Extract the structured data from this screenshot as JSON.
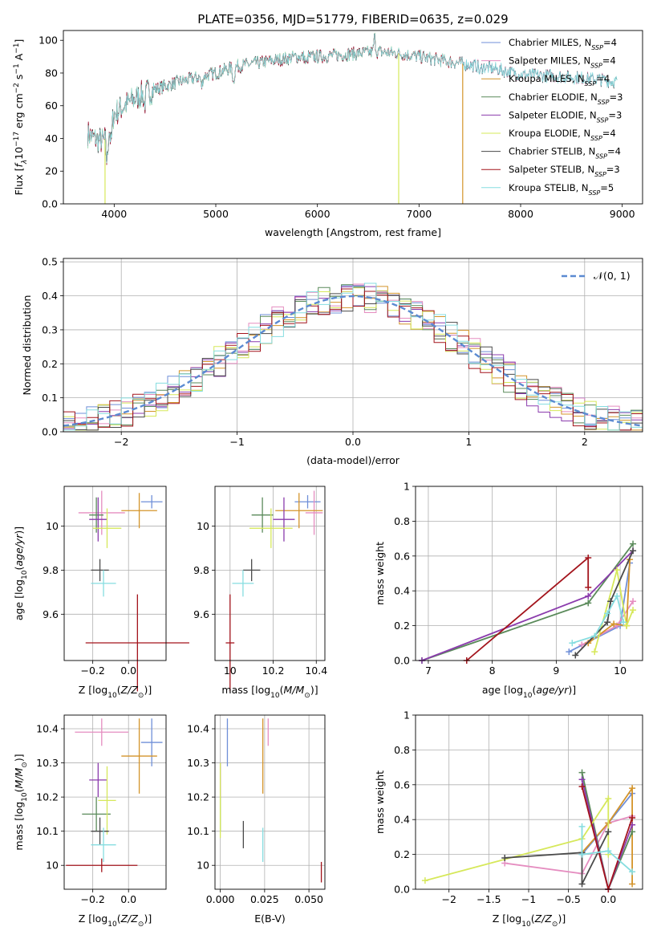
{
  "figure": {
    "title": "PLATE=0356, MJD=51779, FIBERID=0635, z=0.029",
    "legend": [
      {
        "label": "Chabrier MILES, N",
        "sub": "SSP",
        "suffix": "=4",
        "color": "#6f8fd8"
      },
      {
        "label": "Salpeter MILES, N",
        "sub": "SSP",
        "suffix": "=4",
        "color": "#e58dc0"
      },
      {
        "label": "Kroupa MILES, N",
        "sub": "SSP",
        "suffix": "=4",
        "color": "#d4942a"
      },
      {
        "label": "Chabrier ELODIE, N",
        "sub": "SSP",
        "suffix": "=3",
        "color": "#5a8a5a"
      },
      {
        "label": "Salpeter ELODIE, N",
        "sub": "SSP",
        "suffix": "=3",
        "color": "#8b3cad"
      },
      {
        "label": "Kroupa ELODIE, N",
        "sub": "SSP",
        "suffix": "=4",
        "color": "#d6e85a"
      },
      {
        "label": "Chabrier STELIB, N",
        "sub": "SSP",
        "suffix": "=4",
        "color": "#4a4a4a"
      },
      {
        "label": "Salpeter STELIB, N",
        "sub": "SSP",
        "suffix": "=3",
        "color": "#a3141c"
      },
      {
        "label": "Kroupa STELIB, N",
        "sub": "SSP",
        "suffix": "=5",
        "color": "#86dde0"
      }
    ]
  },
  "chart_data": [
    {
      "id": "spectrum",
      "type": "line",
      "xlabel": "wavelength [Angstrom, rest frame]",
      "ylabel": "Flux [f_λ 10^-17 erg cm^-2 s^-1 A^-1]",
      "xlim": [
        3500,
        9200
      ],
      "ylim": [
        0,
        106
      ],
      "xticks": [
        4000,
        5000,
        6000,
        7000,
        8000,
        9000
      ],
      "yticks": [
        0,
        20,
        40,
        60,
        80,
        100
      ],
      "continuum": {
        "x": [
          3740,
          3800,
          3900,
          4000,
          4100,
          4200,
          4300,
          4400,
          4600,
          4800,
          5000,
          5200,
          5400,
          5600,
          5800,
          6000,
          6200,
          6400,
          6600,
          6800,
          7000,
          7200,
          7400,
          7600,
          7800,
          8000,
          8400,
          8800,
          9000
        ],
        "y": [
          43,
          40,
          38,
          55,
          60,
          64,
          68,
          70,
          74,
          77,
          80,
          84,
          86,
          88,
          90,
          90,
          91,
          92,
          93,
          92,
          90,
          88,
          86,
          84,
          82,
          79,
          78,
          76,
          74
        ]
      },
      "features": [
        {
          "x": 3930,
          "depth": 20
        },
        {
          "x": 3970,
          "depth": 15
        },
        {
          "x": 4300,
          "depth": 8
        },
        {
          "x": 4861,
          "depth": 7
        },
        {
          "x": 5175,
          "depth": 10
        },
        {
          "x": 5890,
          "depth": 6
        },
        {
          "x": 6563,
          "depth": -10
        },
        {
          "x": 7600,
          "depth": 5
        }
      ],
      "glitches": [
        {
          "x": 3910,
          "series": "Kroupa ELODIE"
        },
        {
          "x": 6800,
          "series": "Kroupa ELODIE"
        },
        {
          "x": 7430,
          "series": "Kroupa MILES"
        }
      ],
      "series_end": [
        {
          "name": "Chabrier MILES",
          "xmax": 8900
        },
        {
          "name": "Salpeter MILES",
          "xmax": 8900
        },
        {
          "name": "Kroupa MILES",
          "xmax": 7430
        },
        {
          "name": "Chabrier ELODIE",
          "xmax": 6800
        },
        {
          "name": "Salpeter ELODIE",
          "xmax": 6800
        },
        {
          "name": "Kroupa ELODIE",
          "xmax": 6800
        },
        {
          "name": "Chabrier STELIB",
          "xmax": 8950
        },
        {
          "name": "Salpeter STELIB",
          "xmax": 7430
        },
        {
          "name": "Kroupa STELIB",
          "xmax": 8950
        }
      ]
    },
    {
      "id": "residuals",
      "type": "histogram",
      "xlabel": "(data-model)/error",
      "ylabel": "Normed distribution",
      "xlim": [
        -2.5,
        2.5
      ],
      "ylim": [
        0,
        0.51
      ],
      "xticks": [
        -2,
        -1,
        0,
        1,
        2
      ],
      "yticks": [
        0.0,
        0.1,
        0.2,
        0.3,
        0.4,
        0.5
      ],
      "bin_width": 0.1,
      "legend": "𝒩(0, 1)",
      "curve": "normal(0,1)"
    },
    {
      "id": "age_vs_Z",
      "type": "errorbar",
      "xlabel": "Z [log10(Z/Z⊙)]",
      "ylabel": "age  [log10(age/yr)]",
      "xlim": [
        -0.36,
        0.21
      ],
      "ylim": [
        9.39,
        10.18
      ],
      "xticks": [
        -0.2,
        0.0
      ],
      "yticks": [
        9.6,
        9.8,
        10.0
      ],
      "points": [
        {
          "series": "Chabrier MILES",
          "x": 0.13,
          "y": 10.11,
          "xe": 0.06,
          "ye": 0.03
        },
        {
          "series": "Salpeter MILES",
          "x": -0.15,
          "y": 10.06,
          "xe": 0.13,
          "ye": 0.1
        },
        {
          "series": "Kroupa MILES",
          "x": 0.06,
          "y": 10.07,
          "xe": 0.1,
          "ye": 0.08
        },
        {
          "series": "Chabrier ELODIE",
          "x": -0.18,
          "y": 10.05,
          "xe": 0.04,
          "ye": 0.08
        },
        {
          "series": "Salpeter ELODIE",
          "x": -0.17,
          "y": 10.03,
          "xe": 0.05,
          "ye": 0.1
        },
        {
          "series": "Kroupa ELODIE",
          "x": -0.12,
          "y": 9.99,
          "xe": 0.08,
          "ye": 0.09
        },
        {
          "series": "Chabrier STELIB",
          "x": -0.16,
          "y": 9.8,
          "xe": 0.05,
          "ye": 0.05
        },
        {
          "series": "Salpeter STELIB",
          "x": 0.05,
          "y": 9.47,
          "xe": 0.29,
          "ye": 0.22
        },
        {
          "series": "Kroupa STELIB",
          "x": -0.14,
          "y": 9.74,
          "xe": 0.07,
          "ye": 0.06
        }
      ]
    },
    {
      "id": "age_vs_mass",
      "type": "errorbar",
      "xlabel": "mass [log10(M/M⊙)]",
      "ylabel": "",
      "xlim": [
        9.93,
        10.44
      ],
      "ylim": [
        9.39,
        10.18
      ],
      "xticks": [
        10.0,
        10.2,
        10.4
      ],
      "yticks": [
        9.6,
        9.8,
        10.0
      ],
      "points": [
        {
          "series": "Chabrier MILES",
          "x": 10.36,
          "y": 10.11,
          "xe": 0.06,
          "ye": 0.03
        },
        {
          "series": "Salpeter MILES",
          "x": 10.39,
          "y": 10.06,
          "xe": 0.04,
          "ye": 0.1
        },
        {
          "series": "Kroupa MILES",
          "x": 10.32,
          "y": 10.07,
          "xe": 0.11,
          "ye": 0.08
        },
        {
          "series": "Chabrier ELODIE",
          "x": 10.15,
          "y": 10.05,
          "xe": 0.05,
          "ye": 0.08
        },
        {
          "series": "Salpeter ELODIE",
          "x": 10.25,
          "y": 10.03,
          "xe": 0.05,
          "ye": 0.1
        },
        {
          "series": "Kroupa ELODIE",
          "x": 10.19,
          "y": 9.99,
          "xe": 0.1,
          "ye": 0.09
        },
        {
          "series": "Chabrier STELIB",
          "x": 10.1,
          "y": 9.8,
          "xe": 0.04,
          "ye": 0.05
        },
        {
          "series": "Salpeter STELIB",
          "x": 10.0,
          "y": 9.47,
          "xe": 0.02,
          "ye": 0.22
        },
        {
          "series": "Kroupa STELIB",
          "x": 10.06,
          "y": 9.74,
          "xe": 0.05,
          "ye": 0.06
        }
      ]
    },
    {
      "id": "weight_vs_age",
      "type": "line",
      "xlabel": "age  [log10(age/yr)]",
      "ylabel": "mass weight",
      "xlim": [
        6.8,
        10.35
      ],
      "ylim": [
        0,
        1.0
      ],
      "xticks": [
        7,
        8,
        9,
        10
      ],
      "yticks": [
        0.0,
        0.2,
        0.4,
        0.6,
        0.8,
        1.0
      ],
      "series": [
        {
          "name": "Chabrier MILES",
          "x": [
            9.2,
            10.0,
            10.15
          ],
          "y": [
            0.05,
            0.2,
            0.56
          ]
        },
        {
          "name": "Salpeter MILES",
          "x": [
            9.4,
            9.95,
            10.2
          ],
          "y": [
            0.09,
            0.2,
            0.34
          ]
        },
        {
          "name": "Kroupa MILES",
          "x": [
            9.5,
            9.9,
            10.1,
            10.15
          ],
          "y": [
            0.1,
            0.21,
            0.2,
            0.58
          ]
        },
        {
          "name": "Chabrier ELODIE",
          "x": [
            6.9,
            9.5,
            10.2
          ],
          "y": [
            0.0,
            0.33,
            0.67
          ]
        },
        {
          "name": "Salpeter ELODIE",
          "x": [
            6.9,
            9.5,
            10.2
          ],
          "y": [
            0.0,
            0.37,
            0.63
          ]
        },
        {
          "name": "Kroupa ELODIE",
          "x": [
            9.6,
            9.95,
            10.1,
            10.2
          ],
          "y": [
            0.05,
            0.52,
            0.2,
            0.29
          ]
        },
        {
          "name": "Chabrier STELIB",
          "x": [
            9.3,
            9.8,
            9.85,
            10.2
          ],
          "y": [
            0.03,
            0.22,
            0.34,
            0.63
          ]
        },
        {
          "name": "Salpeter STELIB",
          "x": [
            7.6,
            9.5,
            9.5
          ],
          "y": [
            0.0,
            0.59,
            0.42
          ]
        },
        {
          "name": "Kroupa STELIB",
          "x": [
            9.25,
            9.6,
            9.8,
            9.95,
            10.05
          ],
          "y": [
            0.1,
            0.14,
            0.27,
            0.37,
            0.22
          ]
        }
      ]
    },
    {
      "id": "mass_vs_Z",
      "type": "errorbar",
      "xlabel": "Z [log10(Z/Z⊙)]",
      "ylabel": "mass [log10(M/M⊙)]",
      "xlim": [
        -0.36,
        0.21
      ],
      "ylim": [
        9.93,
        10.44
      ],
      "xticks": [
        -0.2,
        0.0
      ],
      "yticks": [
        10.0,
        10.1,
        10.2,
        10.3,
        10.4
      ],
      "points": [
        {
          "series": "Chabrier MILES",
          "x": 0.13,
          "y": 10.36,
          "xe": 0.06,
          "ye": 0.07
        },
        {
          "series": "Salpeter MILES",
          "x": -0.15,
          "y": 10.39,
          "xe": 0.15,
          "ye": 0.04
        },
        {
          "series": "Kroupa MILES",
          "x": 0.06,
          "y": 10.32,
          "xe": 0.1,
          "ye": 0.11
        },
        {
          "series": "Chabrier ELODIE",
          "x": -0.18,
          "y": 10.15,
          "xe": 0.08,
          "ye": 0.05
        },
        {
          "series": "Salpeter ELODIE",
          "x": -0.17,
          "y": 10.25,
          "xe": 0.05,
          "ye": 0.05
        },
        {
          "series": "Kroupa ELODIE",
          "x": -0.12,
          "y": 10.19,
          "xe": 0.05,
          "ye": 0.1
        },
        {
          "series": "Chabrier STELIB",
          "x": -0.16,
          "y": 10.1,
          "xe": 0.05,
          "ye": 0.04
        },
        {
          "series": "Salpeter STELIB",
          "x": -0.15,
          "y": 10.0,
          "xe": 0.2,
          "ye": 0.02
        },
        {
          "series": "Kroupa STELIB",
          "x": -0.14,
          "y": 10.06,
          "xe": 0.07,
          "ye": 0.05
        }
      ]
    },
    {
      "id": "mass_vs_ebv",
      "type": "errorbar",
      "xlabel": "E(B-V)",
      "ylabel": "",
      "xlim": [
        -0.003,
        0.059
      ],
      "ylim": [
        9.93,
        10.44
      ],
      "xticks": [
        0.0,
        0.025,
        0.05
      ],
      "xticklabels": [
        "0.000",
        "0.025",
        "0.050"
      ],
      "yticks": [
        10.0,
        10.1,
        10.2,
        10.3,
        10.4
      ],
      "points": [
        {
          "series": "Chabrier MILES",
          "x": 0.004,
          "y": 10.36,
          "xe": 0,
          "ye": 0.07
        },
        {
          "series": "Salpeter MILES",
          "x": 0.027,
          "y": 10.39,
          "xe": 0,
          "ye": 0.04
        },
        {
          "series": "Kroupa MILES",
          "x": 0.024,
          "y": 10.32,
          "xe": 0,
          "ye": 0.11
        },
        {
          "series": "Chabrier ELODIE",
          "x": 0.0,
          "y": 10.15,
          "xe": 0,
          "ye": 0.05
        },
        {
          "series": "Salpeter ELODIE",
          "x": 0.0,
          "y": 10.25,
          "xe": 0,
          "ye": 0.05
        },
        {
          "series": "Kroupa ELODIE",
          "x": 0.0,
          "y": 10.19,
          "xe": 0,
          "ye": 0.11
        },
        {
          "series": "Chabrier STELIB",
          "x": 0.013,
          "y": 10.09,
          "xe": 0,
          "ye": 0.04
        },
        {
          "series": "Salpeter STELIB",
          "x": 0.057,
          "y": 9.98,
          "xe": 0,
          "ye": 0.03
        },
        {
          "series": "Kroupa STELIB",
          "x": 0.024,
          "y": 10.06,
          "xe": 0,
          "ye": 0.05
        }
      ]
    },
    {
      "id": "weight_vs_Z",
      "type": "line",
      "xlabel": "Z [log10(Z/Z⊙)]",
      "ylabel": "mass weight",
      "xlim": [
        -2.42,
        0.43
      ],
      "ylim": [
        0,
        1.0
      ],
      "xticks": [
        -2.0,
        -1.5,
        -1.0,
        -0.5,
        0.0
      ],
      "yticks": [
        0.0,
        0.2,
        0.4,
        0.6,
        0.8,
        1.0
      ],
      "series": [
        {
          "name": "Chabrier MILES",
          "x": [
            -0.33,
            0.0,
            0.3
          ],
          "y": [
            0.2,
            0.38,
            0.55
          ]
        },
        {
          "name": "Salpeter MILES",
          "x": [
            -1.3,
            -0.33,
            0.0,
            0.3
          ],
          "y": [
            0.15,
            0.09,
            0.38,
            0.42
          ]
        },
        {
          "name": "Kroupa MILES",
          "x": [
            -0.33,
            0.0,
            0.3,
            0.3
          ],
          "y": [
            0.21,
            0.38,
            0.58,
            0.03
          ]
        },
        {
          "name": "Chabrier ELODIE",
          "x": [
            -0.33,
            0.0,
            0.3
          ],
          "y": [
            0.67,
            0.0,
            0.33
          ]
        },
        {
          "name": "Salpeter ELODIE",
          "x": [
            -0.33,
            0.0,
            0.3
          ],
          "y": [
            0.63,
            0.0,
            0.37
          ]
        },
        {
          "name": "Kroupa ELODIE",
          "x": [
            -2.3,
            -0.33,
            0.0,
            0.0
          ],
          "y": [
            0.05,
            0.29,
            0.52,
            0.2
          ]
        },
        {
          "name": "Chabrier STELIB",
          "x": [
            -1.3,
            -0.33,
            -0.33,
            0.0
          ],
          "y": [
            0.18,
            0.21,
            0.03,
            0.33
          ]
        },
        {
          "name": "Salpeter STELIB",
          "x": [
            -0.33,
            0.0,
            0.3
          ],
          "y": [
            0.59,
            0.0,
            0.41
          ]
        },
        {
          "name": "Kroupa STELIB",
          "x": [
            -0.33,
            -0.33,
            0.0,
            0.3
          ],
          "y": [
            0.36,
            0.2,
            0.22,
            0.1
          ]
        }
      ]
    }
  ]
}
